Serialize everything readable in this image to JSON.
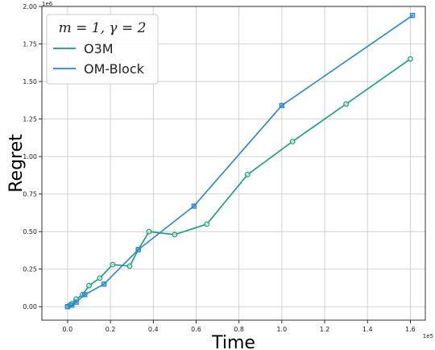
{
  "chart_data": {
    "type": "line",
    "title": "",
    "xlabel": "Time",
    "ylabel": "Regret",
    "x_exponent_label": "1e5",
    "y_exponent_label": "1e6",
    "xlim": [
      -0.12,
      1.67
    ],
    "ylim": [
      -0.09,
      2.0
    ],
    "x_ticks": [
      0.0,
      0.2,
      0.4,
      0.6,
      0.8,
      1.0,
      1.2,
      1.4,
      1.6
    ],
    "x_tick_labels": [
      "0.0",
      "0.2",
      "0.4",
      "0.6",
      "0.8",
      "1.0",
      "1.2",
      "1.4",
      "1.6"
    ],
    "y_ticks": [
      0.0,
      0.25,
      0.5,
      0.75,
      1.0,
      1.25,
      1.5,
      1.75,
      2.0
    ],
    "y_tick_labels": [
      "0.00",
      "0.25",
      "0.50",
      "0.75",
      "1.00",
      "1.25",
      "1.50",
      "1.75",
      "2.00"
    ],
    "grid": true,
    "legend_position": "top-left",
    "legend_title": "m = 1, γ = 2",
    "series": [
      {
        "name": "O3M",
        "color": "#11a36f",
        "marker": "circle",
        "x": [
          0.0,
          0.01,
          0.02,
          0.04,
          0.07,
          0.1,
          0.15,
          0.21,
          0.29,
          0.33,
          0.38,
          0.5,
          0.65,
          0.84,
          1.05,
          1.3,
          1.6
        ],
        "y": [
          0.0,
          0.01,
          0.02,
          0.05,
          0.08,
          0.14,
          0.19,
          0.28,
          0.27,
          0.38,
          0.5,
          0.48,
          0.55,
          0.88,
          1.1,
          1.35,
          1.65
        ]
      },
      {
        "name": "OM-Block",
        "color": "#2a86d6",
        "marker": "square",
        "x": [
          0.0,
          0.02,
          0.04,
          0.08,
          0.17,
          0.33,
          0.59,
          1.0,
          1.61
        ],
        "y": [
          0.0,
          0.01,
          0.03,
          0.08,
          0.15,
          0.38,
          0.67,
          1.34,
          1.94
        ]
      }
    ]
  }
}
